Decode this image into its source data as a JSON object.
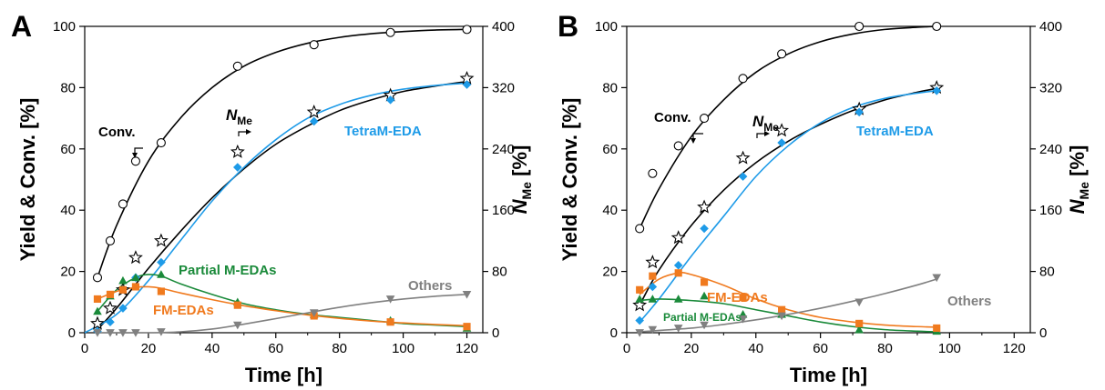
{
  "chart_data": [
    {
      "panel": "A",
      "type": "scatter",
      "xlabel": "Time [h]",
      "ylabel": "Yield & Conv. [%]",
      "ylabel_right": "N_Me [%]",
      "ylabel_right_main": "N",
      "ylabel_right_sub": "Me",
      "right_unit": "[%]",
      "xlim": [
        0,
        125
      ],
      "ylim": [
        0,
        100
      ],
      "ylim_right": [
        0,
        400
      ],
      "xticks": [
        0,
        20,
        40,
        60,
        80,
        100,
        120
      ],
      "yticks": [
        0,
        20,
        40,
        60,
        80,
        100
      ],
      "yticks_right": [
        0,
        80,
        160,
        240,
        320,
        400
      ],
      "series": [
        {
          "key": "conv",
          "name": "Conv.",
          "color": "#000000",
          "marker": "circle-open",
          "axis": "left",
          "x": [
            4,
            8,
            12,
            16,
            24,
            48,
            72,
            96,
            120
          ],
          "y": [
            18,
            30,
            42,
            56,
            62,
            87,
            94,
            98,
            99
          ],
          "fit_x": [
            4,
            10,
            20,
            30,
            40,
            50,
            60,
            70,
            80,
            90,
            100,
            110,
            120
          ],
          "fit_y": [
            18,
            35,
            56,
            70,
            80,
            87,
            91.5,
            94.5,
            96.4,
            97.6,
            98.3,
            98.8,
            99
          ]
        },
        {
          "key": "nme",
          "name": "N_Me",
          "color": "#000000",
          "marker": "star-open",
          "axis": "right",
          "x": [
            4,
            8,
            12,
            16,
            24,
            48,
            72,
            96,
            120
          ],
          "y": [
            12,
            32,
            56,
            98,
            120,
            236,
            288,
            310,
            332
          ],
          "fit_x": [
            4,
            10,
            20,
            30,
            40,
            50,
            60,
            70,
            80,
            90,
            100,
            110,
            120
          ],
          "fit_y": [
            4,
            32,
            84,
            132,
            176,
            214,
            246,
            270,
            290,
            304,
            315,
            322,
            328
          ]
        },
        {
          "key": "tetra",
          "name": "TetraM-EDA",
          "color": "#1E9BE8",
          "marker": "diamond",
          "axis": "left",
          "x": [
            4,
            8,
            12,
            16,
            24,
            48,
            72,
            96,
            120
          ],
          "y": [
            0.5,
            3.5,
            8,
            18,
            23,
            54,
            69,
            76,
            81
          ],
          "fit_x": [
            0,
            10,
            20,
            30,
            40,
            50,
            60,
            70,
            80,
            90,
            100,
            110,
            120
          ],
          "fit_y": [
            0,
            6,
            17,
            30,
            43,
            54,
            63,
            70,
            74.5,
            77.5,
            79.5,
            80.7,
            81.5
          ]
        },
        {
          "key": "partial",
          "name": "Partial M-EDAs",
          "color": "#1A8A3A",
          "marker": "triangle-up",
          "axis": "left",
          "x": [
            4,
            8,
            12,
            16,
            24,
            48,
            72,
            96,
            120
          ],
          "y": [
            7,
            12,
            17,
            18,
            19,
            10,
            6,
            4,
            1.5
          ],
          "fit_x": [
            4,
            10,
            16,
            20,
            24,
            30,
            40,
            50,
            60,
            70,
            80,
            90,
            100,
            110,
            120
          ],
          "fit_y": [
            7,
            14,
            18,
            19,
            18.5,
            16,
            12.5,
            9.5,
            7.5,
            6,
            5,
            4,
            3,
            2.5,
            2
          ]
        },
        {
          "key": "fm",
          "name": "FM-EDAs",
          "color": "#F07A1E",
          "marker": "square",
          "axis": "left",
          "x": [
            4,
            8,
            12,
            16,
            24,
            48,
            72,
            96,
            120
          ],
          "y": [
            11,
            12.5,
            14,
            15,
            13.5,
            9,
            5.5,
            3.5,
            2
          ],
          "fit_x": [
            4,
            10,
            16,
            20,
            24,
            30,
            40,
            50,
            60,
            70,
            80,
            90,
            100,
            110,
            120
          ],
          "fit_y": [
            11,
            13.5,
            14.8,
            15,
            14.5,
            13,
            10.8,
            8.8,
            7.2,
            5.8,
            4.7,
            3.8,
            3.2,
            2.7,
            2.3
          ]
        },
        {
          "key": "others",
          "name": "Others",
          "color": "#808080",
          "marker": "triangle-down",
          "axis": "left",
          "x": [
            4,
            8,
            12,
            16,
            24,
            48,
            72,
            96,
            120
          ],
          "y": [
            0,
            0,
            0,
            0,
            0.3,
            2.5,
            6.5,
            11,
            12.5
          ],
          "fit_x": [
            4,
            20,
            30,
            40,
            50,
            60,
            70,
            80,
            90,
            100,
            110,
            120
          ],
          "fit_y": [
            0,
            0,
            0.3,
            1.2,
            2.8,
            4.6,
            6.5,
            8.3,
            9.8,
            11,
            11.9,
            12.5
          ]
        }
      ]
    },
    {
      "panel": "B",
      "type": "scatter",
      "xlabel": "Time [h]",
      "ylabel": "Yield & Conv. [%]",
      "ylabel_right": "N_Me [%]",
      "ylabel_right_main": "N",
      "ylabel_right_sub": "Me",
      "right_unit": "[%]",
      "xlim": [
        0,
        125
      ],
      "ylim": [
        0,
        100
      ],
      "ylim_right": [
        0,
        400
      ],
      "xticks": [
        0,
        20,
        40,
        60,
        80,
        100,
        120
      ],
      "yticks": [
        0,
        20,
        40,
        60,
        80,
        100
      ],
      "yticks_right": [
        0,
        80,
        160,
        240,
        320,
        400
      ],
      "series": [
        {
          "key": "conv",
          "name": "Conv.",
          "color": "#000000",
          "marker": "circle-open",
          "axis": "left",
          "x": [
            4,
            8,
            16,
            24,
            36,
            48,
            72,
            96
          ],
          "y": [
            34,
            52,
            61,
            70,
            83,
            91,
            100,
            100
          ],
          "fit_x": [
            4,
            10,
            20,
            30,
            40,
            50,
            60,
            70,
            80,
            90,
            96
          ],
          "fit_y": [
            34,
            47,
            64,
            76,
            85,
            91,
            95,
            97.5,
            99,
            99.7,
            100
          ]
        },
        {
          "key": "nme",
          "name": "N_Me",
          "color": "#000000",
          "marker": "star-open",
          "axis": "right",
          "x": [
            4,
            8,
            16,
            24,
            36,
            48,
            72,
            96
          ],
          "y": [
            36,
            92,
            124,
            164,
            228,
            264,
            292,
            320
          ],
          "fit_x": [
            4,
            10,
            20,
            30,
            40,
            50,
            60,
            70,
            80,
            90,
            96
          ],
          "fit_y": [
            36,
            82,
            140,
            186,
            222,
            250,
            272,
            290,
            304,
            314,
            319
          ]
        },
        {
          "key": "tetra",
          "name": "TetraM-EDA",
          "color": "#1E9BE8",
          "marker": "diamond",
          "axis": "left",
          "x": [
            4,
            8,
            16,
            24,
            36,
            48,
            72,
            96
          ],
          "y": [
            4,
            15,
            22,
            34,
            51,
            62,
            72,
            79
          ],
          "fit_x": [
            4,
            10,
            20,
            30,
            40,
            50,
            60,
            70,
            80,
            90,
            96
          ],
          "fit_y": [
            3.5,
            11,
            25,
            38,
            51,
            61,
            68.5,
            73.5,
            76.5,
            78.2,
            79
          ]
        },
        {
          "key": "partial",
          "name": "Partial M-EDAs",
          "color": "#1A8A3A",
          "marker": "triangle-up",
          "axis": "left",
          "x": [
            4,
            8,
            16,
            24,
            36,
            48,
            72,
            96
          ],
          "y": [
            11,
            11,
            11,
            12,
            6,
            6,
            1,
            0.5
          ],
          "fit_x": [
            4,
            10,
            20,
            30,
            40,
            50,
            60,
            70,
            80,
            90,
            96
          ],
          "fit_y": [
            10.5,
            11,
            10.5,
            9.5,
            7.5,
            5.5,
            3.5,
            2,
            1,
            0.5,
            0.3
          ]
        },
        {
          "key": "fm",
          "name": "FM-EDAs",
          "color": "#F07A1E",
          "marker": "square",
          "axis": "left",
          "x": [
            4,
            8,
            16,
            24,
            36,
            48,
            72,
            96
          ],
          "y": [
            14,
            18.5,
            19.5,
            16.5,
            11.5,
            7.5,
            3,
            1.5
          ],
          "fit_x": [
            4,
            10,
            16,
            20,
            30,
            40,
            50,
            60,
            70,
            80,
            90,
            96
          ],
          "fit_y": [
            12.5,
            17.5,
            19.5,
            19,
            15.5,
            11,
            7.5,
            5,
            3.5,
            2.5,
            2,
            1.8
          ]
        },
        {
          "key": "others",
          "name": "Others",
          "color": "#808080",
          "marker": "triangle-down",
          "axis": "left",
          "x": [
            4,
            8,
            16,
            24,
            36,
            48,
            72,
            96
          ],
          "y": [
            0,
            1,
            1.5,
            2.5,
            4.5,
            5.5,
            10,
            18
          ],
          "fit_x": [
            4,
            20,
            30,
            40,
            50,
            60,
            70,
            80,
            90,
            96
          ],
          "fit_y": [
            0.3,
            1.5,
            2.7,
            4.2,
            6,
            8,
            10.3,
            12.8,
            15.6,
            17.5
          ]
        }
      ]
    }
  ]
}
